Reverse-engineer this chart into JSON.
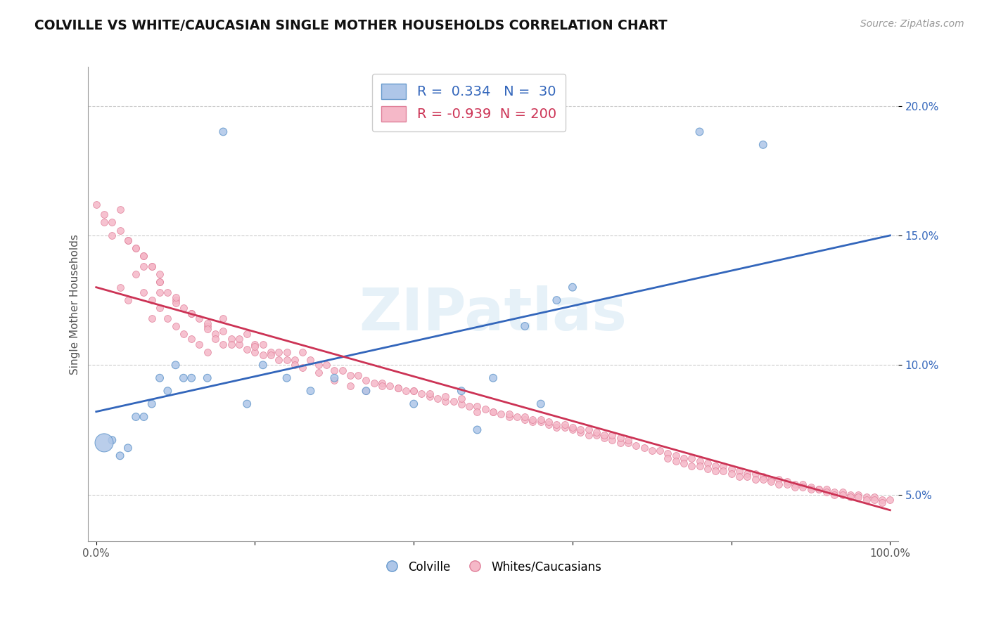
{
  "title": "COLVILLE VS WHITE/CAUCASIAN SINGLE MOTHER HOUSEHOLDS CORRELATION CHART",
  "source": "Source: ZipAtlas.com",
  "ylabel": "Single Mother Households",
  "xlim": [
    -0.01,
    1.01
  ],
  "ylim": [
    0.032,
    0.215
  ],
  "xtick_vals": [
    0.0,
    0.2,
    0.4,
    0.6,
    0.8,
    1.0
  ],
  "xtick_labels": [
    "0.0%",
    "",
    "",
    "",
    "",
    "100.0%"
  ],
  "ytick_vals": [
    0.05,
    0.1,
    0.15,
    0.2
  ],
  "ytick_labels": [
    "5.0%",
    "10.0%",
    "15.0%",
    "20.0%"
  ],
  "blue_R": 0.334,
  "blue_N": 30,
  "pink_R": -0.939,
  "pink_N": 200,
  "blue_color": "#aec6e8",
  "blue_edge": "#6699cc",
  "pink_color": "#f5b8c8",
  "pink_edge": "#e0809a",
  "blue_line_color": "#3366bb",
  "pink_line_color": "#cc3355",
  "legend_blue_color": "#3366bb",
  "legend_pink_color": "#cc3355",
  "watermark": "ZIPatlas",
  "blue_line_x0": 0.0,
  "blue_line_y0": 0.082,
  "blue_line_x1": 1.0,
  "blue_line_y1": 0.15,
  "pink_line_x0": 0.0,
  "pink_line_y0": 0.13,
  "pink_line_x1": 1.0,
  "pink_line_y1": 0.044,
  "blue_x": [
    0.02,
    0.03,
    0.04,
    0.06,
    0.07,
    0.08,
    0.09,
    0.1,
    0.12,
    0.14,
    0.16,
    0.19,
    0.21,
    0.24,
    0.27,
    0.3,
    0.34,
    0.4,
    0.48,
    0.56,
    0.6,
    0.46,
    0.5,
    0.54,
    0.58,
    0.76,
    0.84,
    0.01,
    0.05,
    0.11
  ],
  "blue_y": [
    0.071,
    0.065,
    0.068,
    0.08,
    0.085,
    0.095,
    0.09,
    0.1,
    0.095,
    0.095,
    0.19,
    0.085,
    0.1,
    0.095,
    0.09,
    0.095,
    0.09,
    0.085,
    0.075,
    0.085,
    0.13,
    0.09,
    0.095,
    0.115,
    0.125,
    0.19,
    0.185,
    0.07,
    0.08,
    0.095
  ],
  "blue_sizes": [
    60,
    60,
    60,
    60,
    60,
    60,
    60,
    60,
    60,
    60,
    60,
    60,
    60,
    60,
    60,
    60,
    60,
    60,
    60,
    60,
    60,
    60,
    60,
    60,
    60,
    60,
    60,
    350,
    60,
    60
  ],
  "pink_x": [
    0.01,
    0.02,
    0.03,
    0.03,
    0.04,
    0.04,
    0.05,
    0.05,
    0.06,
    0.06,
    0.07,
    0.07,
    0.07,
    0.08,
    0.08,
    0.09,
    0.09,
    0.1,
    0.1,
    0.11,
    0.11,
    0.12,
    0.12,
    0.13,
    0.13,
    0.14,
    0.14,
    0.15,
    0.16,
    0.16,
    0.17,
    0.18,
    0.19,
    0.2,
    0.2,
    0.21,
    0.22,
    0.23,
    0.24,
    0.25,
    0.26,
    0.27,
    0.28,
    0.29,
    0.3,
    0.31,
    0.32,
    0.33,
    0.34,
    0.35,
    0.36,
    0.37,
    0.38,
    0.39,
    0.4,
    0.41,
    0.42,
    0.43,
    0.44,
    0.45,
    0.46,
    0.47,
    0.48,
    0.49,
    0.5,
    0.51,
    0.52,
    0.53,
    0.54,
    0.55,
    0.56,
    0.57,
    0.58,
    0.59,
    0.6,
    0.61,
    0.62,
    0.63,
    0.64,
    0.65,
    0.66,
    0.67,
    0.68,
    0.69,
    0.7,
    0.71,
    0.72,
    0.73,
    0.74,
    0.75,
    0.76,
    0.77,
    0.78,
    0.79,
    0.8,
    0.81,
    0.82,
    0.83,
    0.84,
    0.85,
    0.86,
    0.87,
    0.88,
    0.89,
    0.9,
    0.91,
    0.92,
    0.93,
    0.94,
    0.95,
    0.96,
    0.97,
    0.98,
    0.99,
    1.0,
    0.72,
    0.73,
    0.74,
    0.75,
    0.76,
    0.77,
    0.78,
    0.79,
    0.8,
    0.81,
    0.82,
    0.83,
    0.84,
    0.85,
    0.86,
    0.87,
    0.88,
    0.89,
    0.9,
    0.91,
    0.92,
    0.93,
    0.94,
    0.95,
    0.96,
    0.97,
    0.98,
    0.99,
    0.48,
    0.5,
    0.52,
    0.54,
    0.55,
    0.56,
    0.57,
    0.58,
    0.59,
    0.6,
    0.61,
    0.62,
    0.63,
    0.64,
    0.65,
    0.66,
    0.67,
    0.36,
    0.38,
    0.4,
    0.42,
    0.44,
    0.46,
    0.08,
    0.1,
    0.12,
    0.14,
    0.16,
    0.18,
    0.2,
    0.22,
    0.24,
    0.26,
    0.28,
    0.3,
    0.32,
    0.34,
    0.06,
    0.08,
    0.1,
    0.12,
    0.14,
    0.0,
    0.01,
    0.02,
    0.03,
    0.04,
    0.05,
    0.06,
    0.07,
    0.08,
    0.15,
    0.17,
    0.19,
    0.21,
    0.23,
    0.25
  ],
  "pink_y": [
    0.155,
    0.15,
    0.16,
    0.13,
    0.148,
    0.125,
    0.145,
    0.135,
    0.142,
    0.128,
    0.138,
    0.125,
    0.118,
    0.132,
    0.122,
    0.128,
    0.118,
    0.125,
    0.115,
    0.122,
    0.112,
    0.12,
    0.11,
    0.118,
    0.108,
    0.115,
    0.105,
    0.112,
    0.118,
    0.108,
    0.11,
    0.108,
    0.112,
    0.108,
    0.105,
    0.108,
    0.105,
    0.105,
    0.105,
    0.102,
    0.105,
    0.102,
    0.1,
    0.1,
    0.098,
    0.098,
    0.096,
    0.096,
    0.094,
    0.093,
    0.093,
    0.092,
    0.091,
    0.09,
    0.09,
    0.089,
    0.088,
    0.087,
    0.086,
    0.086,
    0.085,
    0.084,
    0.084,
    0.083,
    0.082,
    0.081,
    0.08,
    0.08,
    0.079,
    0.078,
    0.078,
    0.077,
    0.076,
    0.076,
    0.075,
    0.074,
    0.073,
    0.073,
    0.072,
    0.071,
    0.07,
    0.07,
    0.069,
    0.068,
    0.067,
    0.067,
    0.066,
    0.065,
    0.064,
    0.064,
    0.063,
    0.062,
    0.061,
    0.061,
    0.06,
    0.059,
    0.058,
    0.058,
    0.057,
    0.056,
    0.056,
    0.055,
    0.054,
    0.054,
    0.053,
    0.052,
    0.052,
    0.051,
    0.051,
    0.05,
    0.05,
    0.049,
    0.049,
    0.048,
    0.048,
    0.064,
    0.063,
    0.062,
    0.061,
    0.061,
    0.06,
    0.059,
    0.059,
    0.058,
    0.057,
    0.057,
    0.056,
    0.056,
    0.055,
    0.054,
    0.054,
    0.053,
    0.053,
    0.052,
    0.052,
    0.051,
    0.05,
    0.05,
    0.049,
    0.049,
    0.048,
    0.048,
    0.047,
    0.082,
    0.082,
    0.081,
    0.08,
    0.079,
    0.079,
    0.078,
    0.077,
    0.077,
    0.076,
    0.075,
    0.075,
    0.074,
    0.073,
    0.073,
    0.072,
    0.071,
    0.092,
    0.091,
    0.09,
    0.089,
    0.088,
    0.087,
    0.128,
    0.124,
    0.12,
    0.116,
    0.113,
    0.11,
    0.107,
    0.104,
    0.102,
    0.099,
    0.097,
    0.094,
    0.092,
    0.09,
    0.138,
    0.132,
    0.126,
    0.12,
    0.114,
    0.162,
    0.158,
    0.155,
    0.152,
    0.148,
    0.145,
    0.142,
    0.138,
    0.135,
    0.11,
    0.108,
    0.106,
    0.104,
    0.102,
    0.1
  ]
}
